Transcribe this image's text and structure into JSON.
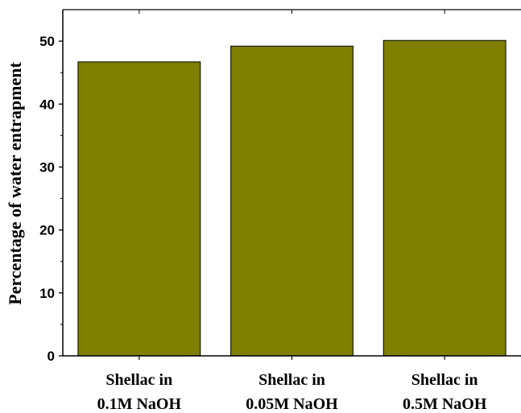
{
  "chart_data": {
    "type": "bar",
    "title": "",
    "xlabel": "",
    "ylabel": "Percentage of water entrapment",
    "categories": [
      [
        "Shellac in",
        "0.1M NaOH"
      ],
      [
        "Shellac in",
        "0.05M NaOH"
      ],
      [
        "Shellac in",
        "0.5M NaOH"
      ]
    ],
    "values": [
      46.7,
      49.2,
      50.1
    ],
    "ylim": [
      0,
      55
    ],
    "yticks": [
      "0",
      "10",
      "20",
      "30",
      "40",
      "50"
    ],
    "grid": false,
    "legend": "none",
    "colors": {
      "bar": "#7f7f00",
      "bar_edge": "#1a1a00",
      "axis": "#000000"
    }
  }
}
